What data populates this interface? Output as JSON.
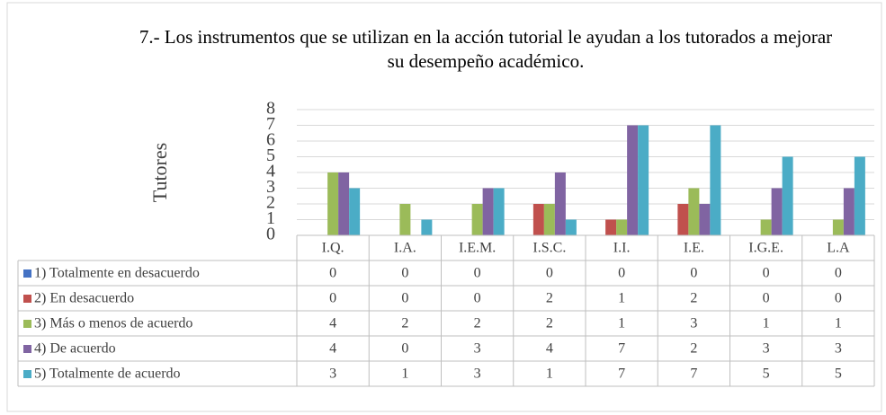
{
  "chart_data": {
    "type": "bar",
    "title": "7.- Los instrumentos que se utilizan en la acción tutorial le ayudan a los tutorados a mejorar su desempeño académico.",
    "ylabel": "Tutores",
    "categories": [
      "I.Q.",
      "I.A.",
      "I.E.M.",
      "I.S.C.",
      "I.I.",
      "I.E.",
      "I.G.E.",
      "L.A"
    ],
    "series": [
      {
        "name": "1) Totalmente en desacuerdo",
        "color": "#4472c4",
        "values": [
          0,
          0,
          0,
          0,
          0,
          0,
          0,
          0
        ]
      },
      {
        "name": "2) En desacuerdo",
        "color": "#c0504d",
        "values": [
          0,
          0,
          0,
          2,
          1,
          2,
          0,
          0
        ]
      },
      {
        "name": "3) Más o menos de acuerdo",
        "color": "#9bbb59",
        "values": [
          4,
          2,
          2,
          2,
          1,
          3,
          1,
          1
        ]
      },
      {
        "name": "4) De acuerdo",
        "color": "#8064a2",
        "values": [
          4,
          0,
          3,
          4,
          7,
          2,
          3,
          3
        ]
      },
      {
        "name": "5) Totalmente de acuerdo",
        "color": "#4bacc6",
        "values": [
          3,
          1,
          3,
          1,
          7,
          7,
          5,
          5
        ]
      }
    ],
    "ylim": [
      0,
      8
    ],
    "yticks": [
      0,
      1,
      2,
      3,
      4,
      5,
      6,
      7,
      8
    ],
    "grid": true
  }
}
